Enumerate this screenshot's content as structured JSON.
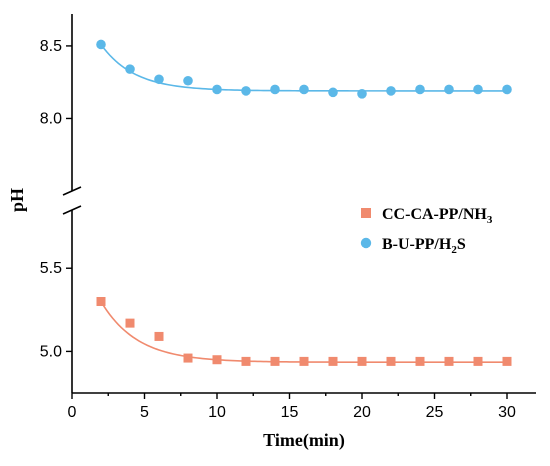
{
  "chart_data": {
    "type": "scatter",
    "xlabel": "Time(min)",
    "ylabel": "pH",
    "xlim": [
      0,
      32
    ],
    "x_ticks": [
      0,
      5,
      10,
      15,
      20,
      25,
      30
    ],
    "y_axis_break": true,
    "y_segments": [
      {
        "ylim": [
          4.75,
          5.85
        ],
        "ticks": [
          5.0,
          5.5
        ],
        "tick_labels": [
          "5.0",
          "5.5"
        ]
      },
      {
        "ylim": [
          7.5,
          8.72
        ],
        "ticks": [
          8.0,
          8.5
        ],
        "tick_labels": [
          "8.0",
          "8.5"
        ]
      }
    ],
    "legend_position": "middle-right",
    "series": [
      {
        "name_main": "CC-CA-PP/NH",
        "name_sub": "3",
        "name_tail": "",
        "marker": "square",
        "color": "#F08A6E",
        "x": [
          2,
          4,
          6,
          8,
          10,
          12,
          14,
          16,
          18,
          20,
          22,
          24,
          26,
          28,
          30
        ],
        "y": [
          5.3,
          5.17,
          5.09,
          4.96,
          4.95,
          4.94,
          4.94,
          4.94,
          4.94,
          4.94,
          4.94,
          4.94,
          4.94,
          4.94,
          4.94
        ],
        "fit": {
          "model": "exp_decay",
          "y_inf": 4.935,
          "amp": 0.365,
          "t0": 2,
          "tau": 2.5
        }
      },
      {
        "name_main": "B-U-PP/H",
        "name_sub": "2",
        "name_tail": "S",
        "marker": "circle",
        "color": "#5BB8E8",
        "x": [
          2,
          4,
          6,
          8,
          10,
          12,
          14,
          16,
          18,
          20,
          22,
          24,
          26,
          28,
          30
        ],
        "y": [
          8.51,
          8.34,
          8.27,
          8.26,
          8.2,
          8.19,
          8.2,
          8.2,
          8.18,
          8.17,
          8.19,
          8.2,
          8.2,
          8.2,
          8.2
        ],
        "fit": {
          "model": "exp_decay",
          "y_inf": 8.19,
          "amp": 0.32,
          "t0": 2,
          "tau": 2.3
        }
      }
    ]
  }
}
